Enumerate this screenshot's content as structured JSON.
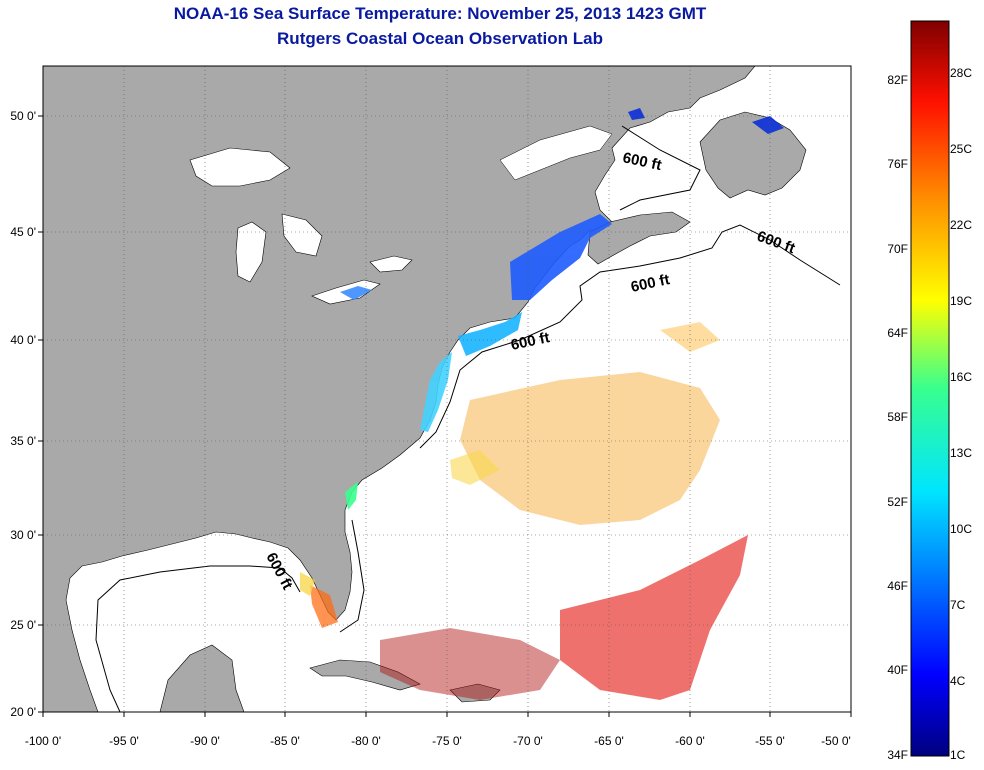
{
  "title": {
    "line1": "NOAA-16 Sea Surface Temperature:  November 25, 2013 1423 GMT",
    "line2": "Rutgers Coastal Ocean Observation Lab"
  },
  "axes": {
    "latitude_labels": [
      "50 0'",
      "45 0'",
      "40 0'",
      "35 0'",
      "30 0'",
      "25 0'",
      "20 0'"
    ],
    "longitude_labels": [
      "-100 0'",
      "-95 0'",
      "-90 0'",
      "-85 0'",
      "-80 0'",
      "-75 0'",
      "-70 0'",
      "-65 0'",
      "-60 0'",
      "-55 0'",
      "-50 0'"
    ]
  },
  "isobath_labels": [
    "600 ft",
    "600 ft",
    "600 ft",
    "600 ft",
    "600 ft"
  ],
  "colorbar": {
    "fahrenheit_labels": [
      "82F",
      "76F",
      "70F",
      "64F",
      "58F",
      "52F",
      "46F",
      "40F",
      "34F"
    ],
    "celsius_labels": [
      "28C",
      "25C",
      "22C",
      "19C",
      "16C",
      "13C",
      "10C",
      "7C",
      "4C",
      "1C"
    ]
  },
  "colors": {
    "land": "#a9a9a9",
    "water_no_data": "#ffffff",
    "title": "#0a1aa0",
    "grid": "#555555"
  }
}
